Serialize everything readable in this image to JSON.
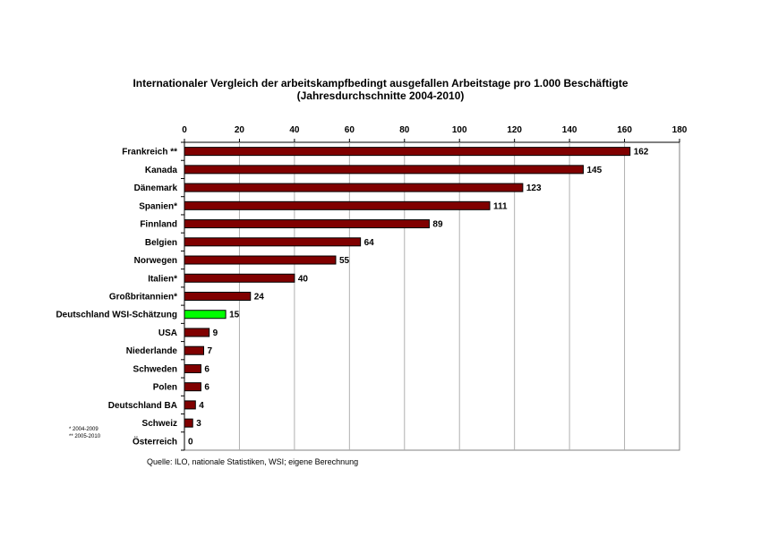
{
  "chart_data": {
    "type": "bar",
    "orientation": "horizontal",
    "title": "Internationaler Vergleich der arbeitskampfbedingt ausgefallen Arbeitstage pro 1.000 Beschäftigte",
    "subtitle": "(Jahresdurchschnitte 2004-2010)",
    "xlim": [
      0,
      180
    ],
    "xticks": [
      0,
      20,
      40,
      60,
      80,
      100,
      120,
      140,
      160,
      180
    ],
    "axis_position": "top",
    "grid": true,
    "categories": [
      "Frankreich **",
      "Kanada",
      "Dänemark",
      "Spanien*",
      "Finnland",
      "Belgien",
      "Norwegen",
      "Italien*",
      "Großbritannien*",
      "Deutschland WSI-Schätzung",
      "USA",
      "Niederlande",
      "Schweden",
      "Polen",
      "Deutschland BA",
      "Schweiz",
      "Österreich"
    ],
    "values": [
      162,
      145,
      123,
      111,
      89,
      64,
      55,
      40,
      24,
      15,
      9,
      7,
      6,
      6,
      4,
      3,
      0
    ],
    "highlight_index": 9,
    "bar_color": "#800000",
    "highlight_color": "#00ff00"
  },
  "footnotes": [
    "*  2004-2009",
    "** 2005-2010"
  ],
  "source": "Quelle: ILO, nationale Statistiken, WSI; eigene Berechnung"
}
